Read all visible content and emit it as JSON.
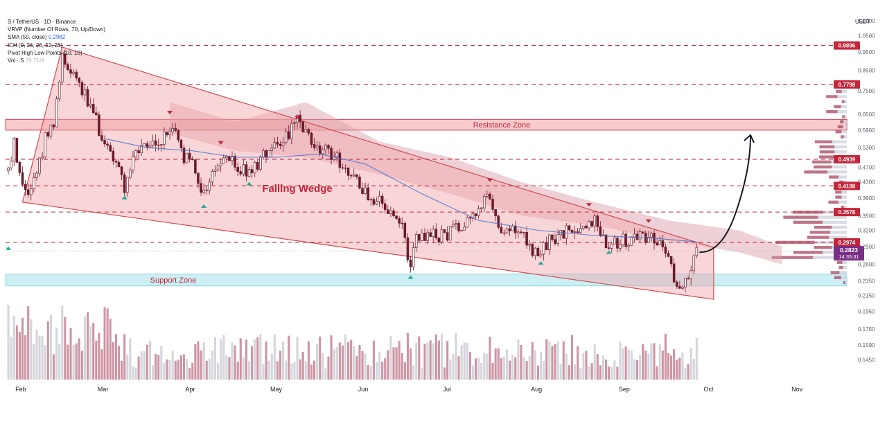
{
  "header": {
    "symbol_line": "S / TetherUS · 1D · Binance",
    "indicators": [
      {
        "label": "VRVP (Number Of Rows, 70, Up/Down)",
        "value": ""
      },
      {
        "label": "SMA (50, close)",
        "value": "0.2982"
      },
      {
        "label": "ICH (9, 26, 26, 52, 26)",
        "value": ""
      },
      {
        "label": "Pivot High Low Points (10, 10)",
        "value": ""
      },
      {
        "label": "Vol · S",
        "value": "29.71M"
      }
    ]
  },
  "axis": {
    "currency": "USDT",
    "ticks": [
      "1.1500",
      "1.0500",
      "0.9500",
      "0.8500",
      "0.7500",
      "0.6500",
      "0.5900",
      "0.5300",
      "0.4700",
      "0.4300",
      "0.3900",
      "0.3500",
      "0.3200",
      "0.2900",
      "0.2600",
      "0.2350",
      "0.2150",
      "0.1950",
      "0.1750",
      "0.1590",
      "0.1450"
    ],
    "months": [
      "Feb",
      "Mar",
      "Apr",
      "May",
      "Jun",
      "Jul",
      "Aug",
      "Sep",
      "Oct",
      "Nov"
    ]
  },
  "colors": {
    "up": "#26a69a",
    "down": "#b85a6e",
    "candle": "#6b1b2a",
    "level": "#c2263a",
    "wedge_fill": "#f0a4a8",
    "wedge_edge": "#d24a52",
    "support_fill": "#c8eef3",
    "resistance_fill": "#f7c1c4",
    "sma": "#3f6fd1",
    "cloud": "#d99aa6",
    "price_label": "#7a2f86"
  },
  "annotations": {
    "resistance": "Resistance Zone",
    "support": "Support Zone",
    "pattern": "Falling Wedge"
  },
  "current": {
    "price": "0.2823",
    "countdown": "14:35:31"
  },
  "chart_data": {
    "type": "candlestick",
    "title": "S / TetherUS · 1D · Binance",
    "y_scale": "log",
    "ylim": [
      0.14,
      1.2
    ],
    "x_range": [
      "2024-01-30",
      "2024-11-22"
    ],
    "levels": [
      {
        "price": 0.9896,
        "label": "0.9896"
      },
      {
        "price": 0.7798,
        "label": "0.7798"
      },
      {
        "price": 0.4939,
        "label": "0.4939"
      },
      {
        "price": 0.4198,
        "label": "0.4198"
      },
      {
        "price": 0.3578,
        "label": "0.3578"
      },
      {
        "price": 0.2974,
        "label": "0.2974"
      }
    ],
    "zones": [
      {
        "name": "Resistance Zone",
        "low": 0.59,
        "high": 0.63
      },
      {
        "name": "Support Zone",
        "low": 0.228,
        "high": 0.245
      }
    ],
    "wedge": {
      "upper": [
        [
          "2024-02-19",
          0.98
        ],
        [
          "2024-10-06",
          0.288
        ]
      ],
      "lower": [
        [
          "2024-02-05",
          0.38
        ],
        [
          "2024-10-06",
          0.21
        ]
      ]
    },
    "price_path": [
      [
        "2024-01-31",
        0.46
      ],
      [
        "2024-02-02",
        0.55
      ],
      [
        "2024-02-04",
        0.46
      ],
      [
        "2024-02-07",
        0.4
      ],
      [
        "2024-02-10",
        0.46
      ],
      [
        "2024-02-13",
        0.56
      ],
      [
        "2024-02-16",
        0.6
      ],
      [
        "2024-02-19",
        0.93
      ],
      [
        "2024-02-22",
        0.86
      ],
      [
        "2024-02-25",
        0.8
      ],
      [
        "2024-02-28",
        0.7
      ],
      [
        "2024-03-02",
        0.62
      ],
      [
        "2024-03-05",
        0.55
      ],
      [
        "2024-03-09",
        0.49
      ],
      [
        "2024-03-12",
        0.42
      ],
      [
        "2024-03-16",
        0.51
      ],
      [
        "2024-03-20",
        0.53
      ],
      [
        "2024-03-25",
        0.55
      ],
      [
        "2024-03-29",
        0.6
      ],
      [
        "2024-04-02",
        0.5
      ],
      [
        "2024-04-05",
        0.48
      ],
      [
        "2024-04-09",
        0.4
      ],
      [
        "2024-04-13",
        0.47
      ],
      [
        "2024-04-17",
        0.5
      ],
      [
        "2024-04-21",
        0.47
      ],
      [
        "2024-04-25",
        0.45
      ],
      [
        "2024-04-30",
        0.51
      ],
      [
        "2024-05-04",
        0.55
      ],
      [
        "2024-05-08",
        0.57
      ],
      [
        "2024-05-12",
        0.62
      ],
      [
        "2024-05-16",
        0.56
      ],
      [
        "2024-05-20",
        0.52
      ],
      [
        "2024-05-25",
        0.51
      ],
      [
        "2024-05-29",
        0.47
      ],
      [
        "2024-06-02",
        0.43
      ],
      [
        "2024-06-06",
        0.4
      ],
      [
        "2024-06-10",
        0.38
      ],
      [
        "2024-06-14",
        0.35
      ],
      [
        "2024-06-18",
        0.32
      ],
      [
        "2024-06-21",
        0.26
      ],
      [
        "2024-06-23",
        0.3
      ],
      [
        "2024-06-27",
        0.31
      ],
      [
        "2024-07-02",
        0.31
      ],
      [
        "2024-07-06",
        0.32
      ],
      [
        "2024-07-10",
        0.34
      ],
      [
        "2024-07-14",
        0.36
      ],
      [
        "2024-07-18",
        0.39
      ],
      [
        "2024-07-22",
        0.33
      ],
      [
        "2024-07-26",
        0.32
      ],
      [
        "2024-07-30",
        0.31
      ],
      [
        "2024-08-05",
        0.27
      ],
      [
        "2024-08-09",
        0.3
      ],
      [
        "2024-08-13",
        0.31
      ],
      [
        "2024-08-17",
        0.32
      ],
      [
        "2024-08-21",
        0.33
      ],
      [
        "2024-08-25",
        0.34
      ],
      [
        "2024-08-29",
        0.3
      ],
      [
        "2024-09-02",
        0.3
      ],
      [
        "2024-09-06",
        0.3
      ],
      [
        "2024-09-10",
        0.31
      ],
      [
        "2024-09-14",
        0.31
      ],
      [
        "2024-09-18",
        0.29
      ],
      [
        "2024-09-21",
        0.25
      ],
      [
        "2024-09-24",
        0.23
      ],
      [
        "2024-09-27",
        0.24
      ],
      [
        "2024-09-30",
        0.2823
      ]
    ],
    "sma_path": [
      [
        "2024-03-05",
        0.56
      ],
      [
        "2024-03-20",
        0.53
      ],
      [
        "2024-04-05",
        0.52
      ],
      [
        "2024-04-20",
        0.5
      ],
      [
        "2024-05-05",
        0.5
      ],
      [
        "2024-05-20",
        0.51
      ],
      [
        "2024-06-05",
        0.48
      ],
      [
        "2024-06-25",
        0.4
      ],
      [
        "2024-07-15",
        0.34
      ],
      [
        "2024-08-05",
        0.32
      ],
      [
        "2024-08-25",
        0.31
      ],
      [
        "2024-09-15",
        0.305
      ],
      [
        "2024-09-30",
        0.2982
      ]
    ],
    "pivot_highs": [
      [
        "2024-03-28",
        0.65
      ],
      [
        "2024-04-15",
        0.54
      ],
      [
        "2024-05-12",
        0.63
      ],
      [
        "2024-07-19",
        0.43
      ],
      [
        "2024-08-23",
        0.37
      ],
      [
        "2024-09-13",
        0.335
      ]
    ],
    "pivot_lows": [
      [
        "2024-01-31",
        0.29
      ],
      [
        "2024-03-12",
        0.395
      ],
      [
        "2024-04-09",
        0.375
      ],
      [
        "2024-04-25",
        0.43
      ],
      [
        "2024-06-21",
        0.243
      ],
      [
        "2024-08-06",
        0.265
      ],
      [
        "2024-08-30",
        0.283
      ]
    ],
    "projection": [
      [
        "2024-10-01",
        0.28
      ],
      [
        "2024-10-09",
        0.293
      ],
      [
        "2024-10-14",
        0.36
      ],
      [
        "2024-10-19",
        0.57
      ]
    ]
  }
}
